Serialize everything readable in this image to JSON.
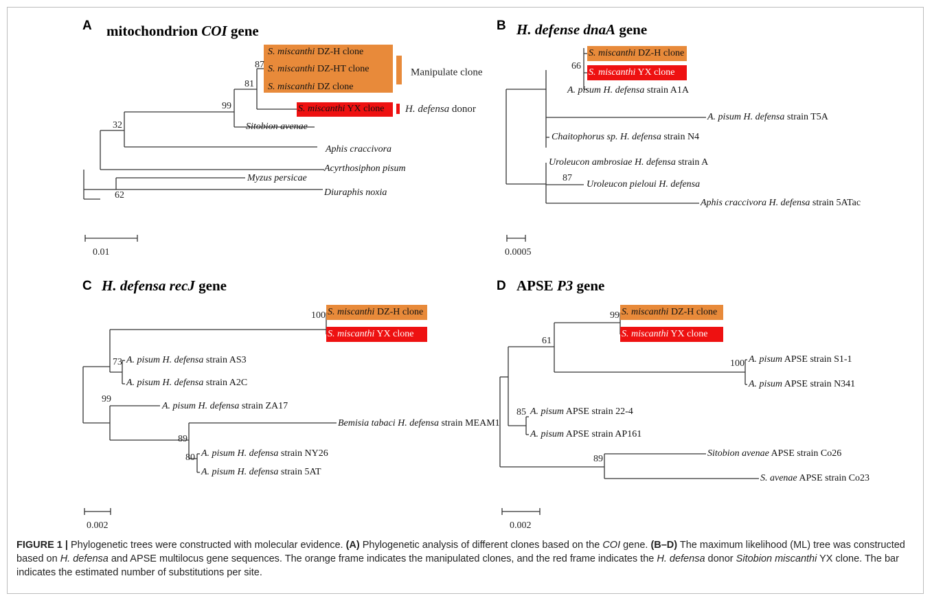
{
  "colors": {
    "orange": "#e88a3a",
    "red": "#ee1111",
    "line": "#333333"
  },
  "panels": [
    {
      "letter": "A",
      "title": [
        {
          "t": "mitochondrion ",
          "i": false
        },
        {
          "t": "COI",
          "i": true
        },
        {
          "t": " gene",
          "i": false
        }
      ],
      "scale_bar_label": "0.01",
      "leaves": [
        {
          "italic": "S. miscanthi",
          "rest": " DZ-H clone",
          "box": "orange"
        },
        {
          "italic": "S. miscanthi",
          "rest": " DZ-HT clone",
          "box": "orange"
        },
        {
          "italic": "S. miscanthi",
          "rest": " DZ clone",
          "box": "orange"
        },
        {
          "italic": "S. miscanthi",
          "rest": " YX clone",
          "box": "red"
        },
        {
          "italic": "Sitobion avenae",
          "rest": "",
          "box": null
        },
        {
          "italic": "Aphis craccivora",
          "rest": "",
          "box": null
        },
        {
          "italic": "Acyrthosiphon pisum",
          "rest": "",
          "box": null
        },
        {
          "italic": "Myzus persicae",
          "rest": "",
          "box": null
        },
        {
          "italic": "Diuraphis noxia",
          "rest": "",
          "box": null
        }
      ],
      "bootstraps": [
        "87",
        "81",
        "99",
        "32",
        "62"
      ],
      "legend": [
        {
          "label": "Manipulate clone",
          "italic": "",
          "color": "orange"
        },
        {
          "label": " donor",
          "italic": "H. defensa",
          "color": "red"
        }
      ]
    },
    {
      "letter": "B",
      "title": [
        {
          "t": "H. defense dnaA",
          "i": true
        },
        {
          "t": " gene",
          "i": false
        }
      ],
      "scale_bar_label": "0.0005",
      "leaves": [
        {
          "italic": "S. miscanthi",
          "rest": " DZ-H clone",
          "box": "orange"
        },
        {
          "italic": "S. miscanthi",
          "rest": " YX clone",
          "box": "red"
        },
        {
          "italic": "A. pisum H. defensa",
          "rest": " strain A1A",
          "box": null
        },
        {
          "italic": "A. pisum H. defensa",
          "rest": " strain T5A",
          "box": null
        },
        {
          "italic": "Chaitophorus sp. H. defensa",
          "rest": " strain N4",
          "box": null
        },
        {
          "italic": "Uroleucon ambrosiae H. defensa",
          "rest": " strain A",
          "box": null
        },
        {
          "italic": "Uroleucon pieloui H. defensa",
          "rest": "",
          "box": null
        },
        {
          "italic": "Aphis craccivora H. defensa",
          "rest": " strain 5ATac",
          "box": null
        }
      ],
      "bootstraps": [
        "66",
        "87"
      ]
    },
    {
      "letter": "C",
      "title": [
        {
          "t": "H. defensa recJ",
          "i": true
        },
        {
          "t": " gene",
          "i": false
        }
      ],
      "scale_bar_label": "0.002",
      "leaves": [
        {
          "italic": "S. miscanthi",
          "rest": " DZ-H clone",
          "box": "orange"
        },
        {
          "italic": "S. miscanthi",
          "rest": " YX clone",
          "box": "red"
        },
        {
          "italic": "A. pisum H. defensa",
          "rest": " strain AS3",
          "box": null
        },
        {
          "italic": "A. pisum H. defensa",
          "rest": " strain A2C",
          "box": null
        },
        {
          "italic": "A. pisum H. defensa",
          "rest": " strain ZA17",
          "box": null
        },
        {
          "italic": "Bemisia tabaci H. defensa",
          "rest": " strain MEAM1",
          "box": null
        },
        {
          "italic": "A. pisum H. defensa",
          "rest": " strain NY26",
          "box": null
        },
        {
          "italic": "A. pisum H. defensa",
          "rest": " strain 5AT",
          "box": null
        }
      ],
      "bootstraps": [
        "100",
        "73",
        "99",
        "89",
        "80"
      ]
    },
    {
      "letter": "D",
      "title": [
        {
          "t": "APSE ",
          "i": false
        },
        {
          "t": "P3",
          "i": true
        },
        {
          "t": " gene",
          "i": false
        }
      ],
      "scale_bar_label": "0.002",
      "leaves": [
        {
          "italic": "S. miscanthi",
          "rest": " DZ-H clone",
          "box": "orange"
        },
        {
          "italic": "S. miscanthi",
          "rest": " YX clone",
          "box": "red"
        },
        {
          "italic": "A. pisum",
          "rest": " APSE strain S1-1",
          "box": null
        },
        {
          "italic": "A. pisum",
          "rest": " APSE strain N341",
          "box": null
        },
        {
          "italic": "A. pisum",
          "rest": " APSE strain 22-4",
          "box": null
        },
        {
          "italic": "A. pisum",
          "rest": " APSE strain AP161",
          "box": null
        },
        {
          "italic": "Sitobion avenae",
          "rest": " APSE strain Co26",
          "box": null
        },
        {
          "italic": "S. avenae",
          "rest": " APSE strain Co23",
          "box": null
        }
      ],
      "bootstraps": [
        "99",
        "61",
        "100",
        "85",
        "89"
      ]
    }
  ],
  "caption": [
    {
      "t": "FIGURE 1 | ",
      "s": "b"
    },
    {
      "t": "Phylogenetic trees were constructed with molecular evidence. ",
      "s": ""
    },
    {
      "t": "(A)",
      "s": "b"
    },
    {
      "t": " Phylogenetic analysis of different clones based on the ",
      "s": ""
    },
    {
      "t": "COI",
      "s": "i"
    },
    {
      "t": " gene. ",
      "s": ""
    },
    {
      "t": "(B–D)",
      "s": "b"
    },
    {
      "t": " The maximum likelihood (ML) tree was constructed based on ",
      "s": ""
    },
    {
      "t": "H. defensa",
      "s": "i"
    },
    {
      "t": " and APSE multilocus gene sequences. The orange frame indicates the manipulated clones, and the red frame indicates the ",
      "s": ""
    },
    {
      "t": "H. defensa",
      "s": "i"
    },
    {
      "t": " donor ",
      "s": ""
    },
    {
      "t": "Sitobion miscanthi",
      "s": "i"
    },
    {
      "t": " YX clone. The bar indicates the estimated number of substitutions per site.",
      "s": ""
    }
  ]
}
